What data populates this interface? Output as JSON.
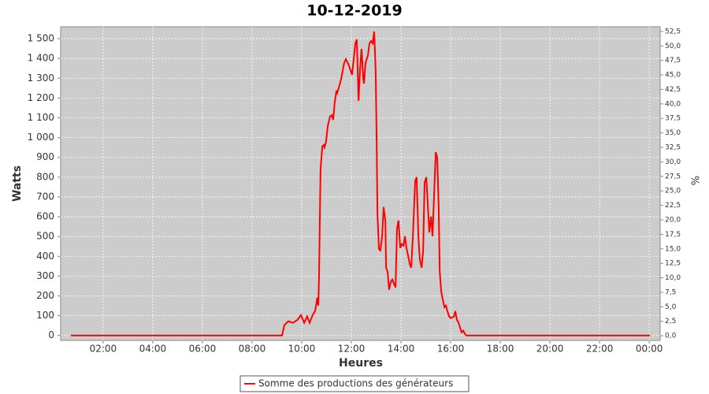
{
  "chart_data": {
    "type": "line",
    "title": "10-12-2019",
    "x_label": "Heures",
    "y_label": "Watts",
    "y2_label": "%",
    "grid": true,
    "legend": "bottom",
    "xlim": [
      0.29,
      24.44
    ],
    "xticks": [
      {
        "value": 2,
        "label": "02:00"
      },
      {
        "value": 4,
        "label": "04:00"
      },
      {
        "value": 6,
        "label": "06:00"
      },
      {
        "value": 8,
        "label": "08:00"
      },
      {
        "value": 10,
        "label": "10:00"
      },
      {
        "value": 12,
        "label": "12:00"
      },
      {
        "value": 14,
        "label": "14:00"
      },
      {
        "value": 16,
        "label": "16:00"
      },
      {
        "value": 18,
        "label": "18:00"
      },
      {
        "value": 20,
        "label": "20:00"
      },
      {
        "value": 22,
        "label": "22:00"
      },
      {
        "value": 24,
        "label": "00:00"
      }
    ],
    "ylim": [
      -25,
      1560
    ],
    "yticks": [
      0,
      100,
      200,
      300,
      400,
      500,
      600,
      700,
      800,
      900,
      {
        "value": 1000,
        "label": "1 000"
      },
      {
        "value": 1100,
        "label": "1 100"
      },
      {
        "value": 1200,
        "label": "1 200"
      },
      {
        "value": 1300,
        "label": "1 300"
      },
      {
        "value": 1400,
        "label": "1 400"
      },
      {
        "value": 1500,
        "label": "1 500"
      }
    ],
    "y2lim": [
      -0.8,
      53.3
    ],
    "y2ticks": [
      {
        "value": 0,
        "label": "0,0"
      },
      {
        "value": 2.5,
        "label": "2,5"
      },
      {
        "value": 5,
        "label": "5,0"
      },
      {
        "value": 7.5,
        "label": "7,5"
      },
      {
        "value": 10,
        "label": "10,0"
      },
      {
        "value": 12.5,
        "label": "12,5"
      },
      {
        "value": 15,
        "label": "15,0"
      },
      {
        "value": 17.5,
        "label": "17,5"
      },
      {
        "value": 20,
        "label": "20,0"
      },
      {
        "value": 22.5,
        "label": "22,5"
      },
      {
        "value": 25,
        "label": "25,0"
      },
      {
        "value": 27.5,
        "label": "27,5"
      },
      {
        "value": 30,
        "label": "30,0"
      },
      {
        "value": 32.5,
        "label": "32,5"
      },
      {
        "value": 35,
        "label": "35,0"
      },
      {
        "value": 37.5,
        "label": "37,5"
      },
      {
        "value": 40,
        "label": "40,0"
      },
      {
        "value": 42.5,
        "label": "42,5"
      },
      {
        "value": 45,
        "label": "45,0"
      },
      {
        "value": 47.5,
        "label": "47,5"
      },
      {
        "value": 50,
        "label": "50,0"
      },
      {
        "value": 52.5,
        "label": "52,5"
      }
    ],
    "x": [
      0.7,
      9.21,
      9.3,
      9.46,
      9.65,
      9.84,
      9.97,
      10.1,
      10.22,
      10.32,
      10.44,
      10.54,
      10.63,
      10.67,
      10.7,
      10.73,
      10.76,
      10.83,
      10.89,
      10.92,
      10.98,
      11.05,
      11.14,
      11.21,
      11.27,
      11.33,
      11.4,
      11.43,
      11.49,
      11.59,
      11.71,
      11.78,
      11.9,
      12.03,
      12.16,
      12.22,
      12.29,
      12.35,
      12.41,
      12.48,
      12.51,
      12.57,
      12.67,
      12.73,
      12.79,
      12.86,
      12.92,
      12.98,
      13.02,
      13.05,
      13.11,
      13.17,
      13.24,
      13.3,
      13.37,
      13.4,
      13.46,
      13.52,
      13.59,
      13.65,
      13.71,
      13.78,
      13.84,
      13.9,
      13.97,
      14.03,
      14.1,
      14.16,
      14.22,
      14.29,
      14.35,
      14.41,
      14.48,
      14.57,
      14.63,
      14.7,
      14.76,
      14.83,
      14.89,
      14.95,
      15.02,
      15.08,
      15.14,
      15.21,
      15.27,
      15.33,
      15.4,
      15.46,
      15.52,
      15.56,
      15.62,
      15.68,
      15.75,
      15.81,
      15.87,
      15.94,
      16.0,
      16.13,
      16.19,
      16.25,
      16.32,
      16.38,
      16.44,
      16.51,
      16.57,
      16.63,
      24.03
    ],
    "series": [
      {
        "name": "Somme des productions des  générateurs",
        "color": "#ff0000",
        "values": [
          0,
          0,
          52,
          72,
          64,
          80,
          103,
          64,
          96,
          64,
          103,
          123,
          191,
          151,
          310,
          581,
          840,
          955,
          963,
          951,
          979,
          1058,
          1106,
          1114,
          1090,
          1178,
          1238,
          1226,
          1250,
          1297,
          1377,
          1397,
          1365,
          1317,
          1476,
          1496,
          1186,
          1345,
          1448,
          1297,
          1273,
          1377,
          1417,
          1476,
          1488,
          1476,
          1536,
          1337,
          979,
          621,
          438,
          430,
          501,
          649,
          581,
          342,
          322,
          231,
          271,
          283,
          263,
          243,
          541,
          581,
          442,
          462,
          454,
          501,
          442,
          402,
          362,
          342,
          501,
          780,
          800,
          501,
          382,
          342,
          422,
          772,
          800,
          661,
          521,
          601,
          501,
          700,
          927,
          899,
          641,
          322,
          223,
          183,
          143,
          151,
          123,
          96,
          88,
          96,
          123,
          80,
          64,
          40,
          16,
          24,
          8,
          0,
          0
        ]
      }
    ]
  }
}
